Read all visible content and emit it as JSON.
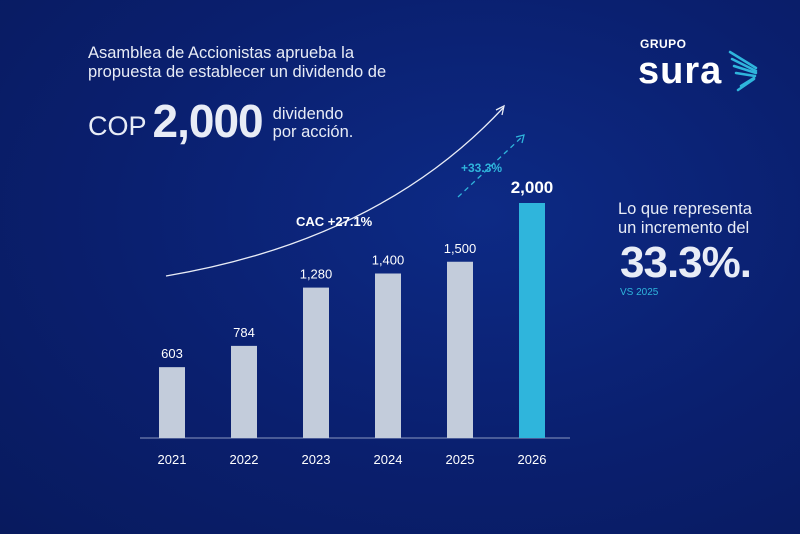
{
  "headline": "Asamblea de Accionistas aprueba la propuesta de establecer un dividendo de",
  "currency": "COP",
  "amount": "2,000",
  "amount_suffix": [
    "dividendo",
    "por acción."
  ],
  "logo": {
    "top": "GRUPO",
    "main": "sura"
  },
  "side": {
    "text": [
      "Lo que representa",
      "un incremento del"
    ],
    "value": "33.3%.",
    "note": "VS 2025"
  },
  "colors": {
    "background": "#0a1f6e",
    "bar": "#c3ccdb",
    "highlight_bar": "#2fb5dc",
    "accent": "#2fb5dc"
  },
  "chart_data": {
    "type": "bar",
    "categories": [
      "2021",
      "2022",
      "2023",
      "2024",
      "2025",
      "2026"
    ],
    "values": [
      603,
      784,
      1280,
      1400,
      1500,
      2000
    ],
    "labels": [
      "603",
      "784",
      "1,280",
      "1,400",
      "1,500",
      "2,000"
    ],
    "highlight": "2026",
    "ylim": [
      0,
      2000
    ],
    "grid": false,
    "annotations": [
      "CAC +27.1%",
      "+33.3%"
    ]
  }
}
